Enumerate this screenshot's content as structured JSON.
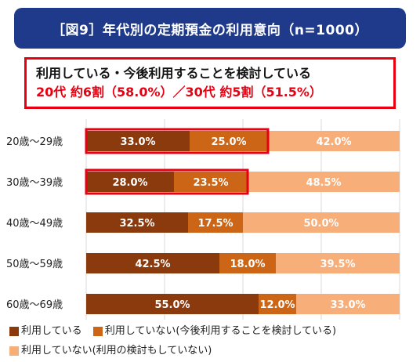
{
  "title": "［図9］年代別の定期預金の利用意向（n=1000）",
  "callout": {
    "line1": "利用している・今後利用することを検討している",
    "line2": "20代 約6割（58.0%）／30代 約5割（51.5%）"
  },
  "colors": {
    "title_bg": "#1f3a8a",
    "callout_border": "#e60012",
    "series": [
      "#8b3a0e",
      "#cc6516",
      "#f7ae79"
    ]
  },
  "chart_data": {
    "type": "bar",
    "orientation": "horizontal",
    "stacked": "percent",
    "categories": [
      "20歳〜29歳",
      "30歳〜39歳",
      "40歳〜49歳",
      "50歳〜59歳",
      "60歳〜69歳"
    ],
    "series": [
      {
        "name": "利用している",
        "values": [
          33.0,
          28.0,
          32.5,
          42.5,
          55.0
        ]
      },
      {
        "name": "利用していない(今後利用することを検討している)",
        "values": [
          25.0,
          23.5,
          17.5,
          18.0,
          12.0
        ]
      },
      {
        "name": "利用していない(利用の検討もしていない)",
        "values": [
          42.0,
          48.5,
          50.0,
          39.5,
          33.0
        ]
      }
    ],
    "xlim": [
      0,
      100
    ],
    "grid": true,
    "highlighted_categories": [
      "20歳〜29歳",
      "30歳〜39歳"
    ],
    "legend_position": "bottom"
  }
}
